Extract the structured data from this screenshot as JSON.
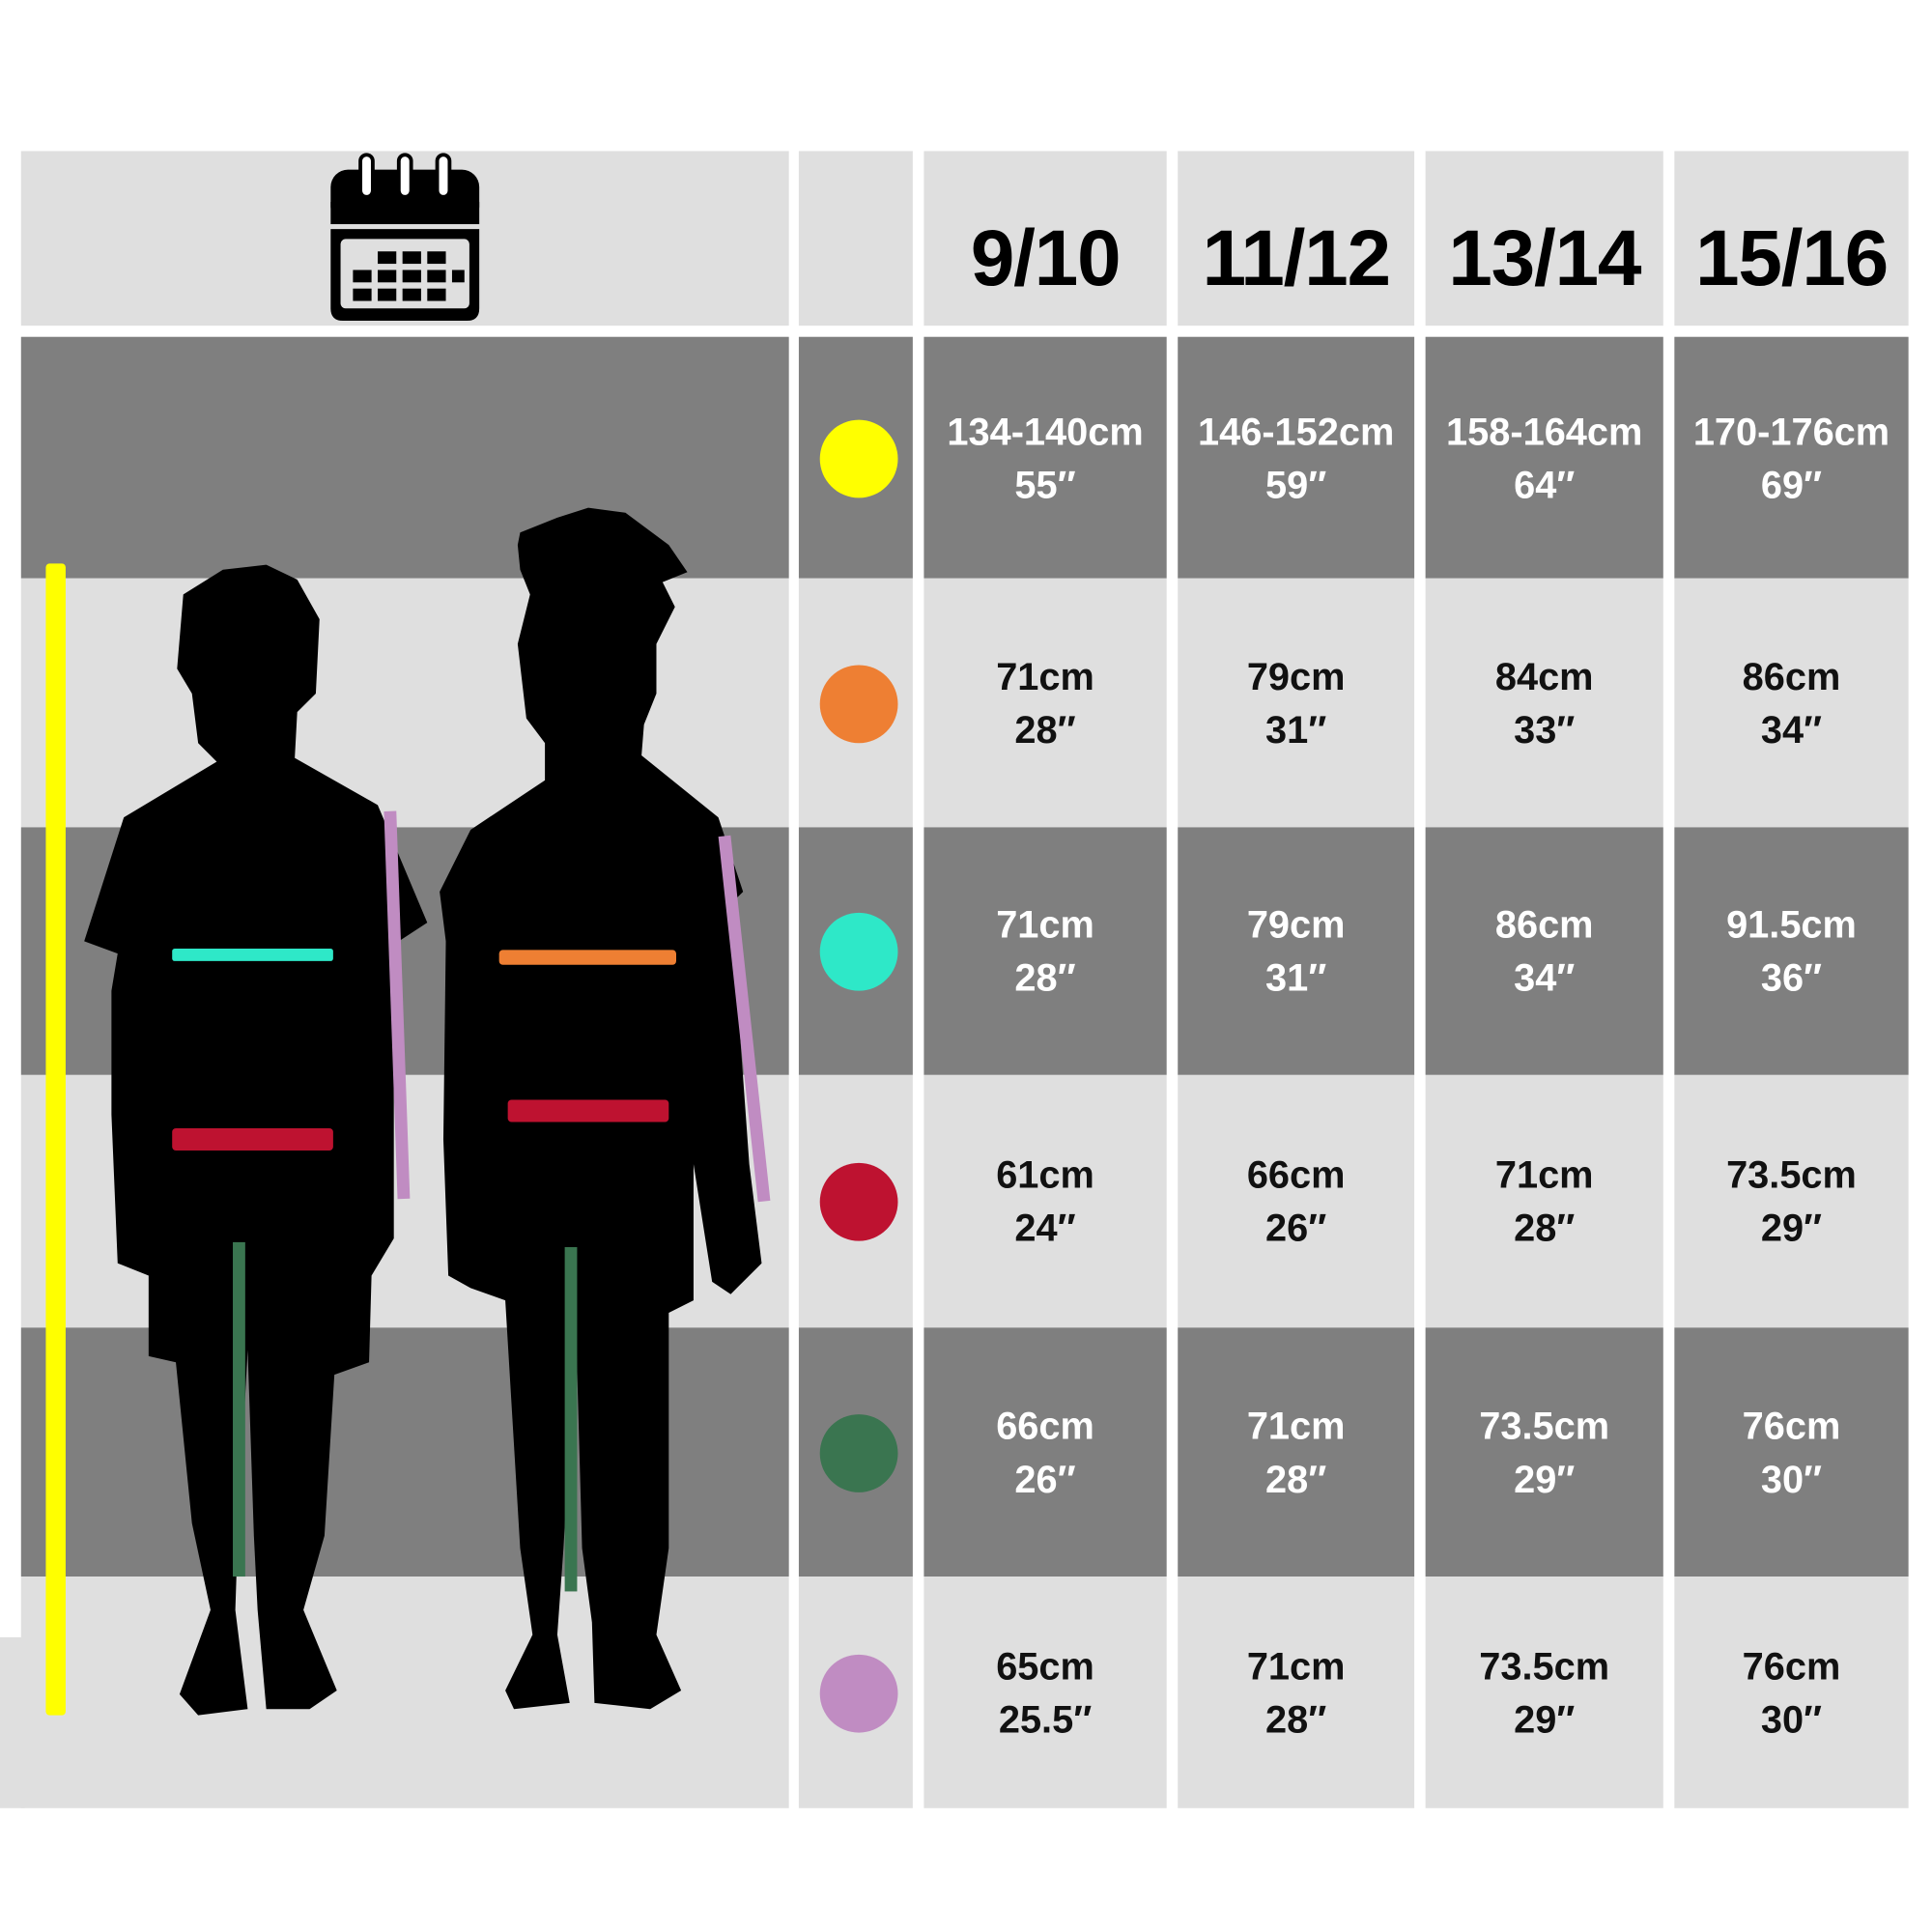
{
  "header": {
    "icon": "calendar-icon",
    "sizes": [
      "9/10",
      "11/12",
      "13/14",
      "15/16"
    ]
  },
  "rows": [
    {
      "measure_color": "#ffff00",
      "values": [
        [
          "134-140cm",
          "55″"
        ],
        [
          "146-152cm",
          "59″"
        ],
        [
          "158-164cm",
          "64″"
        ],
        [
          "170-176cm",
          "69″"
        ]
      ]
    },
    {
      "measure_color": "#ee7f33",
      "values": [
        [
          "71cm",
          "28″"
        ],
        [
          "79cm",
          "31″"
        ],
        [
          "84cm",
          "33″"
        ],
        [
          "86cm",
          "34″"
        ]
      ]
    },
    {
      "measure_color": "#2ee8c8",
      "values": [
        [
          "71cm",
          "28″"
        ],
        [
          "79cm",
          "31″"
        ],
        [
          "86cm",
          "34″"
        ],
        [
          "91.5cm",
          "36″"
        ]
      ]
    },
    {
      "measure_color": "#be1230",
      "values": [
        [
          "61cm",
          "24″"
        ],
        [
          "66cm",
          "26″"
        ],
        [
          "71cm",
          "28″"
        ],
        [
          "73.5cm",
          "29″"
        ]
      ]
    },
    {
      "measure_color": "#3a7550",
      "values": [
        [
          "66cm",
          "26″"
        ],
        [
          "71cm",
          "28″"
        ],
        [
          "73.5cm",
          "29″"
        ],
        [
          "76cm",
          "30″"
        ]
      ]
    },
    {
      "measure_color": "#c08cc2",
      "values": [
        [
          "65cm",
          "25.5″"
        ],
        [
          "71cm",
          "28″"
        ],
        [
          "73.5cm",
          "29″"
        ],
        [
          "76cm",
          "30″"
        ]
      ]
    }
  ]
}
